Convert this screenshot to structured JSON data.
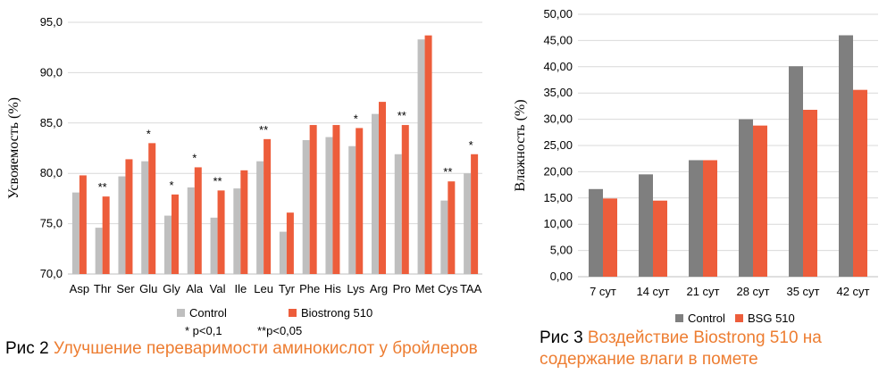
{
  "chart_data": [
    {
      "type": "bar",
      "ylabel": "Усвояемость (%)",
      "ylim": [
        70,
        95
      ],
      "yticks": [
        "70,0",
        "75,0",
        "80,0",
        "85,0",
        "90,0",
        "95,0"
      ],
      "ytick_values": [
        70,
        75,
        80,
        85,
        90,
        95
      ],
      "grid": true,
      "legend": "bottom",
      "categories": [
        "Asp",
        "Thr",
        "Ser",
        "Glu",
        "Gly",
        "Ala",
        "Val",
        "Ile",
        "Leu",
        "Tyr",
        "Phe",
        "His",
        "Lys",
        "Arg",
        "Pro",
        "Met",
        "Cys",
        "TAA"
      ],
      "series": [
        {
          "name": "Control",
          "color": "#bfbfbf",
          "values": [
            78.1,
            74.6,
            79.7,
            81.2,
            75.8,
            78.6,
            75.6,
            78.5,
            81.2,
            74.2,
            83.3,
            83.6,
            82.7,
            85.9,
            81.9,
            93.3,
            77.3,
            80.0
          ]
        },
        {
          "name": "Biostrong 510",
          "color": "#ed5d3b",
          "values": [
            79.8,
            77.7,
            81.4,
            83.0,
            77.9,
            80.6,
            78.3,
            80.3,
            83.4,
            76.1,
            84.8,
            84.8,
            84.5,
            87.1,
            84.8,
            93.7,
            79.2,
            81.9
          ]
        }
      ],
      "annotations": [
        "",
        "**",
        "",
        "*",
        "*",
        "*",
        "**",
        "",
        "**",
        "",
        "",
        "",
        "*",
        "",
        "**",
        "",
        "**",
        "*"
      ],
      "footnotes": [
        "* p<0,1",
        "**p<0,05"
      ]
    },
    {
      "type": "bar",
      "ylabel": "Влажность (%)",
      "ylim": [
        0,
        50
      ],
      "yticks": [
        "0,00",
        "5,00",
        "10,00",
        "15,00",
        "20,00",
        "25,00",
        "30,00",
        "35,00",
        "40,00",
        "45,00",
        "50,00"
      ],
      "ytick_values": [
        0,
        5,
        10,
        15,
        20,
        25,
        30,
        35,
        40,
        45,
        50
      ],
      "grid": true,
      "legend": "bottom",
      "categories": [
        "7 сут",
        "14 сут",
        "21 сут",
        "28 сут",
        "35 сут",
        "42 сут"
      ],
      "series": [
        {
          "name": "Control",
          "color": "#7f7f7f",
          "values": [
            16.7,
            19.5,
            22.2,
            30.0,
            40.1,
            46.0
          ]
        },
        {
          "name": "BSG 510",
          "color": "#ed5d3b",
          "values": [
            14.9,
            14.5,
            22.2,
            28.8,
            31.8,
            35.6
          ]
        }
      ]
    }
  ],
  "captions": {
    "fig2_prefix": "Рис 2 ",
    "fig2_text": "Улучшение переваримости аминокислот у бройлеров",
    "fig3_prefix": "Рис 3 ",
    "fig3_text": "Воздействие Biostrong 510 на содержание влаги в помете"
  },
  "colors": {
    "highlight": "#ed7d31",
    "grid": "#d9d9d9"
  }
}
